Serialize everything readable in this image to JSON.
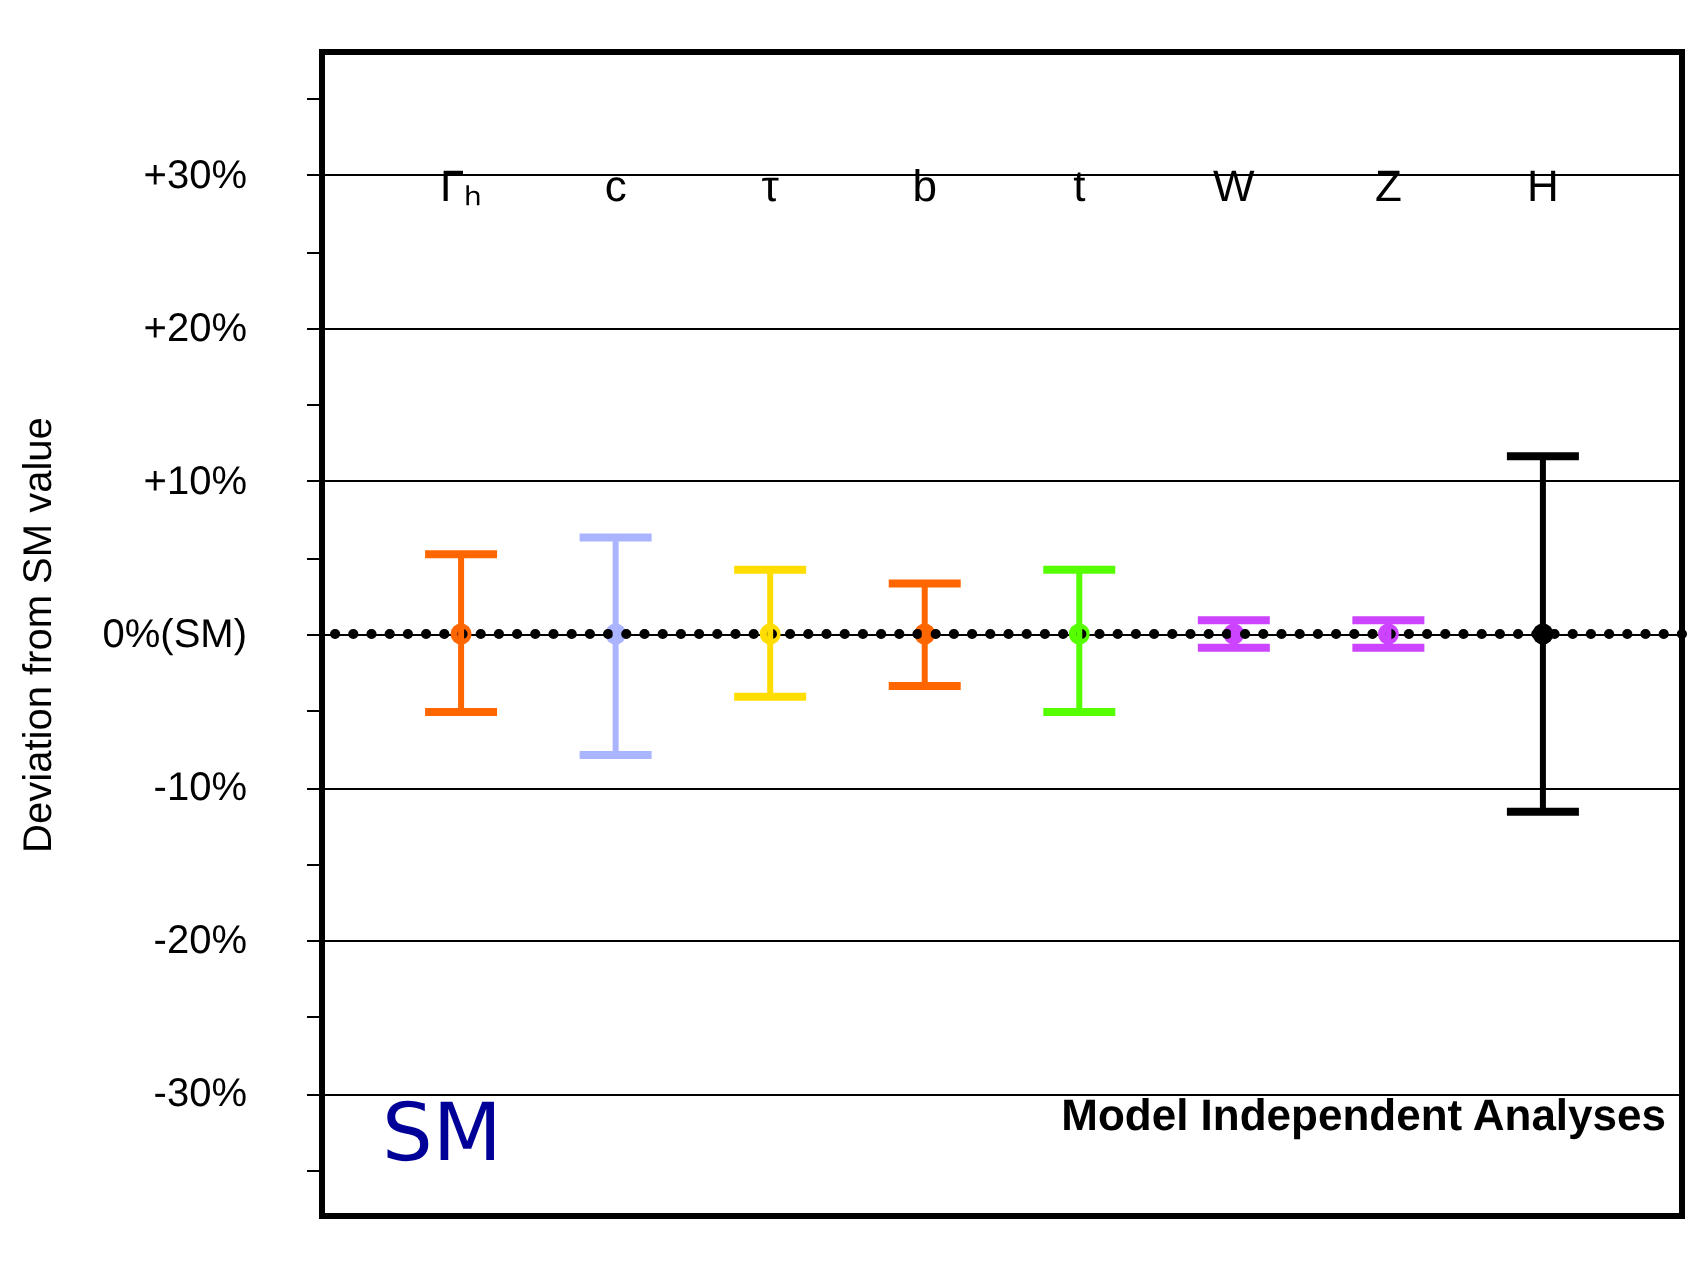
{
  "chart_data": {
    "type": "scatter",
    "ylabel": "Deviation from SM value",
    "categories": [
      "Γₕ",
      "c",
      "τ",
      "b",
      "t",
      "W",
      "Z",
      "H"
    ],
    "values": [
      0,
      0,
      0,
      0,
      0,
      0,
      0,
      0
    ],
    "colors": [
      "#ff6600",
      "#aab4ff",
      "#ffdd00",
      "#ff6600",
      "#55ff00",
      "#cc44ff",
      "#cc44ff",
      "#000000"
    ],
    "errors": [
      [
        -5.1,
        5.2
      ],
      [
        -7.9,
        6.3
      ],
      [
        -4.1,
        4.2
      ],
      [
        -3.4,
        3.3
      ],
      [
        -5.1,
        4.2
      ],
      [
        -0.9,
        0.9
      ],
      [
        -0.9,
        0.9
      ],
      [
        -11.6,
        11.6
      ]
    ],
    "ylim": [
      -38,
      38
    ],
    "yticks": [
      {
        "value": -35,
        "label": null
      },
      {
        "value": -30,
        "label": "-30%"
      },
      {
        "value": -25,
        "label": null
      },
      {
        "value": -20,
        "label": "-20%"
      },
      {
        "value": -15,
        "label": null
      },
      {
        "value": -10,
        "label": "-10%"
      },
      {
        "value": -5,
        "label": null
      },
      {
        "value": 0,
        "label": "0%(SM)"
      },
      {
        "value": 5,
        "label": null
      },
      {
        "value": 10,
        "label": "+10%"
      },
      {
        "value": 15,
        "label": null
      },
      {
        "value": 20,
        "label": "+20%"
      },
      {
        "value": 25,
        "label": null
      },
      {
        "value": 30,
        "label": "+30%"
      },
      {
        "value": 35,
        "label": null
      }
    ],
    "grid": "y",
    "marker": "circle",
    "ref_lines": [
      {
        "axis": "y",
        "value": 0,
        "line_style": "dotted",
        "color": "#000000"
      }
    ],
    "annotations": [
      "Model Independent Analyses",
      "SM"
    ]
  }
}
